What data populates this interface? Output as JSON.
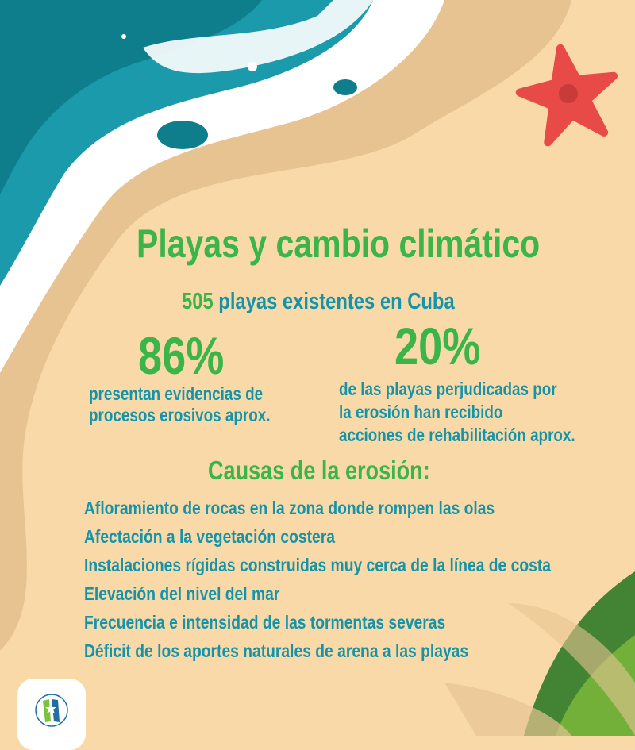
{
  "title": "Playas y cambio climático",
  "subtitle": {
    "number": "505",
    "text": " playas existentes en Cuba"
  },
  "stats": [
    {
      "value": "86%",
      "lines": [
        "presentan evidencias de",
        "procesos erosivos aprox."
      ]
    },
    {
      "value": "20%",
      "lines": [
        "de las playas perjudicadas por",
        "la erosión han recibido",
        "acciones de rehabilitación aprox."
      ]
    }
  ],
  "causes_title": "Causas de la erosión:",
  "causes": [
    "Afloramiento de rocas en la zona donde rompen las olas",
    "Afectación a la vegetación costera",
    "Instalaciones rígidas construidas muy cerca de la línea de costa",
    "Elevación del nivel del mar",
    "Frecuencia e intensidad de las tormentas severas",
    "Déficit de los aportes naturales de arena a las playas"
  ],
  "colors": {
    "sand": "#f9d9a8",
    "wet_sand": "#e6c391",
    "sea": "#1a9aaa",
    "deep_sea": "#0e7e8c",
    "green": "#3bb54a",
    "teal_text": "#1493a9",
    "starfish": "#e84a48"
  },
  "icons": [
    "starfish-icon",
    "palm-leaf-icon",
    "logo-icon"
  ]
}
